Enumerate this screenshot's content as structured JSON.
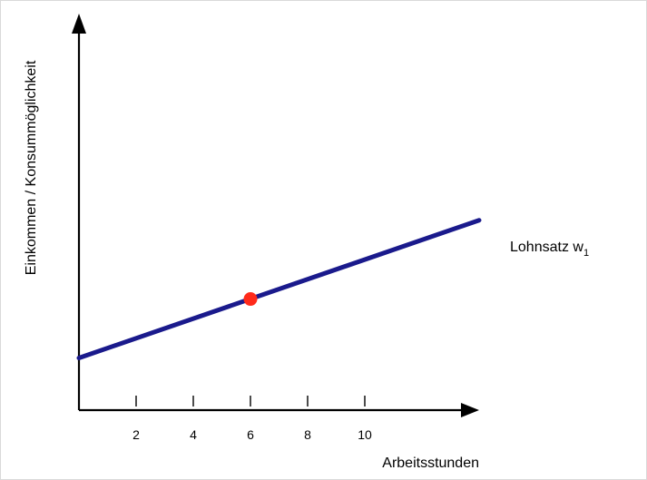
{
  "chart_data": {
    "type": "line",
    "ylabel": "Einkommen / Konsummöglichkeit",
    "xlabel": "Arbeitsstunden",
    "x_ticks": [
      2,
      4,
      6,
      8,
      10
    ],
    "x_tick_labels": [
      "2",
      "4",
      "6",
      "8",
      "10"
    ],
    "xlim": [
      0,
      14
    ],
    "series": [
      {
        "name": "Lohnsatz w",
        "name_subscript": "1",
        "x": [
          0,
          14
        ],
        "y": [
          1.0,
          3.64
        ],
        "color": "#1a1a8c"
      }
    ],
    "highlight_point": {
      "x": 6,
      "y": 2.13,
      "color": "#ff2a1a"
    },
    "ylim": [
      0,
      7.6
    ],
    "grid": false,
    "y_ticks": "none"
  }
}
